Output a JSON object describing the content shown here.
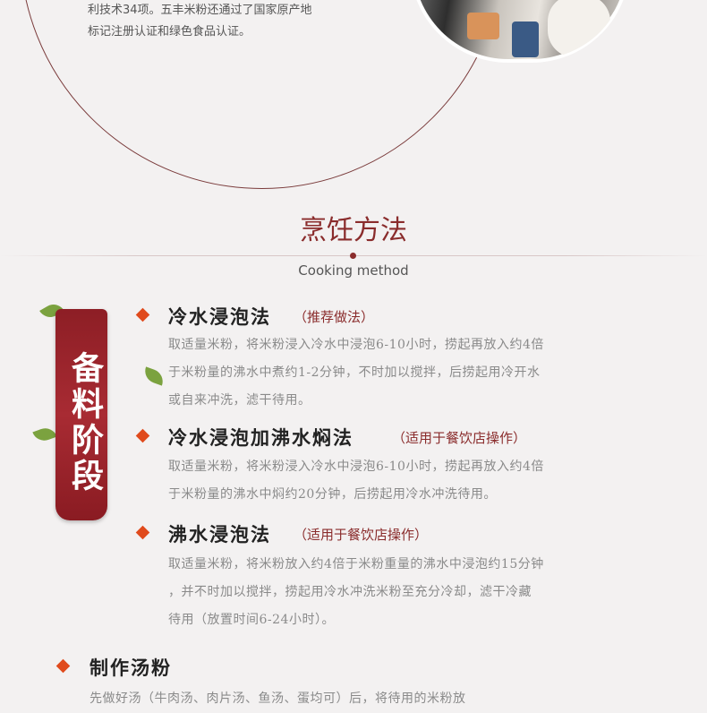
{
  "intro": {
    "line1": "利技术34项。五丰米粉还通过了国家原产地",
    "line2": "标记注册认证和绿色食品认证。"
  },
  "section": {
    "title": "烹饪方法",
    "subtitle": "Cooking method"
  },
  "banner": {
    "text": "备料阶段"
  },
  "methods": [
    {
      "title": "冷水浸泡法",
      "note": "（推荐做法）",
      "lines": [
        "取适量米粉，将米粉浸入冷水中浸泡6-10小时，捞起再放入约4倍",
        "于米粉量的沸水中煮约1-2分钟，不时加以搅拌，后捞起用冷开水",
        "或自来冲洗，滤干待用。"
      ]
    },
    {
      "title": "冷水浸泡加沸水焖法",
      "note": "（适用于餐饮店操作）",
      "lines": [
        "取适量米粉，将米粉浸入冷水中浸泡6-10小时，捞起再放入约4倍",
        "于米粉量的沸水中焖约20分钟，后捞起用冷水冲洗待用。"
      ]
    },
    {
      "title": "沸水浸泡法",
      "note": "（适用于餐饮店操作）",
      "lines": [
        "取适量米粉，将米粉放入约4倍于米粉重量的沸水中浸泡约15分钟",
        "，并不时加以搅拌，捞起用冷水冲洗米粉至充分冷却，滤干冷藏",
        "待用（放置时间6-24小时）。"
      ]
    }
  ],
  "soup": {
    "title": "制作汤粉",
    "line1": "先做好汤（牛肉汤、肉片汤、鱼汤、蛋均可）后，将待用的米粉放"
  }
}
